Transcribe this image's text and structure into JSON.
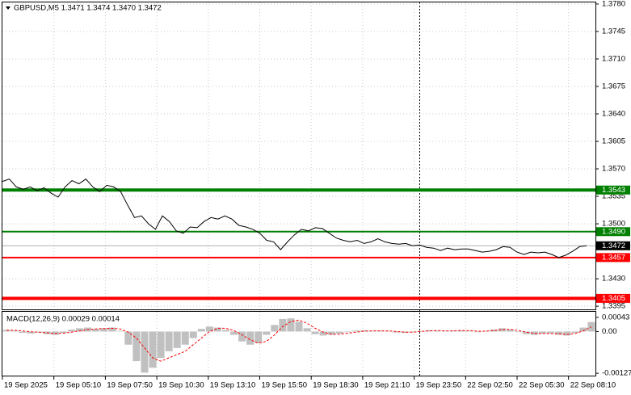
{
  "chart_data": [
    {
      "type": "line",
      "title": "GBPUSD,M5  1.3471 1.3474 1.3470 1.3472",
      "time_labels": [
        "19 Sep 2025",
        "19 Sep 05:10",
        "19 Sep 07:50",
        "19 Sep 10:30",
        "19 Sep 13:10",
        "19 Sep 15:50",
        "19 Sep 18:30",
        "19 Sep 21:10",
        "19 Sep 23:50",
        "22 Sep 02:50",
        "22 Sep 05:30",
        "22 Sep 08:10"
      ],
      "series": [
        {
          "color": "#000000",
          "values": [
            1.3554,
            1.3557,
            1.3547,
            1.3544,
            1.3547,
            1.3542,
            1.3546,
            1.3539,
            1.3534,
            1.3547,
            1.3555,
            1.3551,
            1.3557,
            1.3547,
            1.3541,
            1.3549,
            1.3547,
            1.3541,
            1.3524,
            1.3508,
            1.351,
            1.35,
            1.3493,
            1.351,
            1.3503,
            1.3491,
            1.3488,
            1.3496,
            1.3495,
            1.3503,
            1.3508,
            1.3506,
            1.351,
            1.3506,
            1.3498,
            1.3496,
            1.3493,
            1.3488,
            1.3479,
            1.3477,
            1.3467,
            1.3477,
            1.3486,
            1.3493,
            1.3491,
            1.3495,
            1.3494,
            1.3488,
            1.3482,
            1.3479,
            1.3477,
            1.3479,
            1.3475,
            1.3477,
            1.3481,
            1.3477,
            1.3475,
            1.3474,
            1.3475,
            1.3472,
            1.3473,
            1.347,
            1.3469,
            1.3466,
            1.3469,
            1.3467,
            1.3468,
            1.3468,
            1.3466,
            1.3464,
            1.3465,
            1.3467,
            1.3471,
            1.347,
            1.3464,
            1.3461,
            1.3464,
            1.3463,
            1.3464,
            1.3461,
            1.3457,
            1.346,
            1.3465,
            1.3471,
            1.3472
          ]
        }
      ],
      "ylim": [
        1.3391,
        1.3782
      ],
      "yticks": [
        {
          "value": 1.378,
          "label": "1.3780"
        },
        1.3745,
        {
          "value": 1.371,
          "label": "1.3710"
        },
        1.3675,
        {
          "value": 1.364,
          "label": "1.3640"
        },
        1.3605,
        {
          "value": 1.357,
          "label": "1.3570"
        },
        1.3535,
        {
          "value": 1.35,
          "label": "1.3500"
        },
        {
          "value": 1.343,
          "label": "1.3430"
        },
        1.3395
      ],
      "grid": true,
      "levels": [
        {
          "value": 1.3543,
          "label": "1.3543",
          "color": "#008000",
          "thick": true
        },
        {
          "value": 1.349,
          "label": "1.3490",
          "color": "#008000",
          "thick": false
        },
        {
          "value": 1.3457,
          "label": "1.3457",
          "color": "#ff0000",
          "thick": false
        },
        {
          "value": 1.3405,
          "label": "1.3405",
          "color": "#ff0000",
          "thick": true
        }
      ],
      "last_price": {
        "value": 1.3472,
        "color": "#000000"
      }
    },
    {
      "type": "macd",
      "title": "MACD(12,26,9) 0.00029 0.00014",
      "series": [
        {
          "type": "bar",
          "color": "#c0c0c0",
          "values": [
            5e-05,
            3e-05,
            -4e-05,
            -6e-05,
            -3e-05,
            -8e-05,
            -0.0001,
            -4e-05,
            6e-05,
            0.0001,
            0.00012,
            8e-05,
            0.0001,
            0.00012,
            2e-05,
            -0.0004,
            -0.0009,
            -0.00125,
            -0.0011,
            -0.0008,
            -0.0006,
            -0.0005,
            -0.0004,
            -0.0002,
            8e-05,
            0.00015,
            0.00012,
            5e-05,
            -0.0001,
            -0.0003,
            -0.0004,
            -0.00035,
            -0.0001,
            0.0002,
            0.00038,
            0.0004,
            0.0003,
            0.0001,
            -8e-05,
            -0.00012,
            -0.0001,
            -6e-05,
            -2e-05,
            3e-05,
            4e-05,
            2e-05,
            3e-05,
            1e-05,
            -3e-05,
            -4e-05,
            -2e-05,
            2e-05,
            4e-05,
            3e-05,
            2e-05,
            3e-05,
            4e-05,
            2e-05,
            -2e-05,
            2e-05,
            6e-05,
            0.0001,
            6e-05,
            -2e-05,
            -8e-05,
            -0.0001,
            -6e-05,
            -5e-05,
            -0.0001,
            -0.00012,
            -4e-05,
            0.00012,
            0.00029
          ]
        },
        {
          "type": "line",
          "color": "#ff0000",
          "values": [
            4e-05,
            4e-05,
            2e-05,
            -1e-05,
            -2e-05,
            -4e-05,
            -6e-05,
            -5e-05,
            -2e-05,
            2e-05,
            6e-05,
            8e-05,
            9e-05,
            0.0001,
            8e-05,
            -2e-05,
            -0.0002,
            -0.0005,
            -0.0008,
            -0.0009,
            -0.0008,
            -0.0007,
            -0.0006,
            -0.0004,
            -0.0002,
            0,
            0.0001,
            0.0001,
            3e-05,
            -0.0001,
            -0.00025,
            -0.00035,
            -0.0003,
            -0.0001,
            0.00015,
            0.0003,
            0.00035,
            0.00025,
            0.0001,
            -2e-05,
            -8e-05,
            -8e-05,
            -5e-05,
            -2e-05,
            1e-05,
            2e-05,
            2e-05,
            2e-05,
            0,
            -2e-05,
            -2e-05,
            0,
            2e-05,
            3e-05,
            2e-05,
            2e-05,
            3e-05,
            3e-05,
            1e-05,
            1e-05,
            3e-05,
            6e-05,
            7e-05,
            3e-05,
            -2e-05,
            -6e-05,
            -6e-05,
            -6e-05,
            -7e-05,
            -9e-05,
            -6e-05,
            2e-05,
            0.00014
          ]
        }
      ],
      "ylim": [
        -0.00134,
        0.0006
      ],
      "yticks": [
        0.00043,
        {
          "value": 0,
          "label": "0.00"
        },
        -0.00127
      ]
    }
  ]
}
